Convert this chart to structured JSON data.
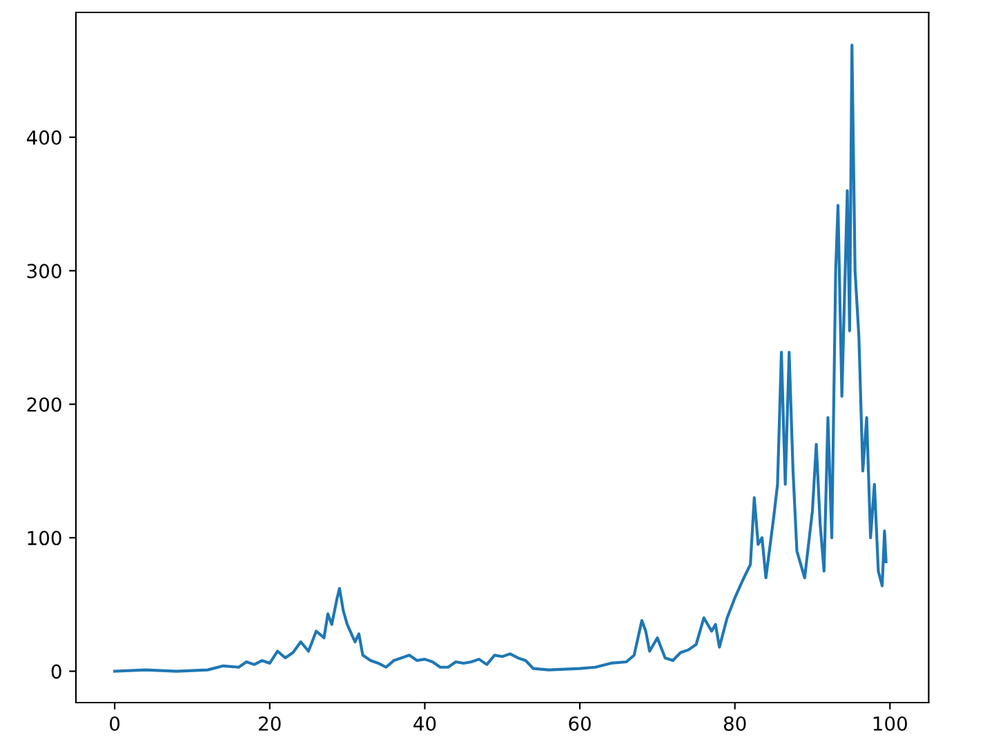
{
  "chart_data": {
    "type": "line",
    "xlim": [
      -5,
      105
    ],
    "ylim": [
      -23.5,
      493.5
    ],
    "xticks": [
      0,
      20,
      40,
      60,
      80,
      100
    ],
    "yticks": [
      0,
      100,
      200,
      300,
      400
    ],
    "grid": false,
    "series": [
      {
        "color": "#1f77b4",
        "x": [
          0,
          4,
          8,
          12,
          14,
          16,
          17,
          18,
          19,
          20,
          21,
          22,
          23,
          24,
          25,
          26,
          27,
          27.5,
          28,
          28.7,
          29,
          29.5,
          30,
          31,
          31.5,
          32,
          33,
          34,
          35,
          36,
          37,
          38,
          39,
          40,
          41,
          42,
          43,
          44,
          45,
          46,
          47,
          48,
          49,
          50,
          51,
          52,
          53,
          54,
          56,
          60,
          62,
          64,
          66,
          67,
          68,
          68.5,
          69,
          70,
          71,
          72,
          73,
          74,
          75,
          76,
          77,
          77.5,
          78,
          79,
          80,
          81,
          82,
          82.5,
          83,
          83.5,
          84,
          85,
          85.5,
          86,
          86.5,
          87,
          87.5,
          88,
          88.5,
          89,
          90,
          90.5,
          91,
          91.5,
          92,
          92.5,
          93,
          93.3,
          93.8,
          94.5,
          94.8,
          95.1,
          95.5,
          96,
          96.5,
          97,
          97.5,
          98,
          98.5,
          99,
          99.3,
          99.5
        ],
        "values": [
          0,
          1,
          0,
          1,
          4,
          3,
          7,
          5,
          8,
          6,
          15,
          10,
          14,
          22,
          15,
          30,
          25,
          43,
          35,
          55,
          62,
          45,
          35,
          22,
          28,
          12,
          8,
          6,
          3,
          8,
          10,
          12,
          8,
          9,
          7,
          3,
          3,
          7,
          6,
          7,
          9,
          5,
          12,
          11,
          13,
          10,
          8,
          2,
          1,
          2,
          3,
          6,
          7,
          12,
          38,
          30,
          15,
          25,
          10,
          8,
          14,
          16,
          20,
          40,
          30,
          35,
          18,
          40,
          55,
          68,
          80,
          130,
          95,
          100,
          70,
          115,
          140,
          239,
          140,
          239,
          150,
          90,
          80,
          70,
          120,
          170,
          110,
          75,
          190,
          100,
          300,
          349,
          206,
          360,
          255,
          469,
          300,
          250,
          150,
          190,
          100,
          140,
          75,
          64,
          105,
          82
        ]
      }
    ]
  }
}
